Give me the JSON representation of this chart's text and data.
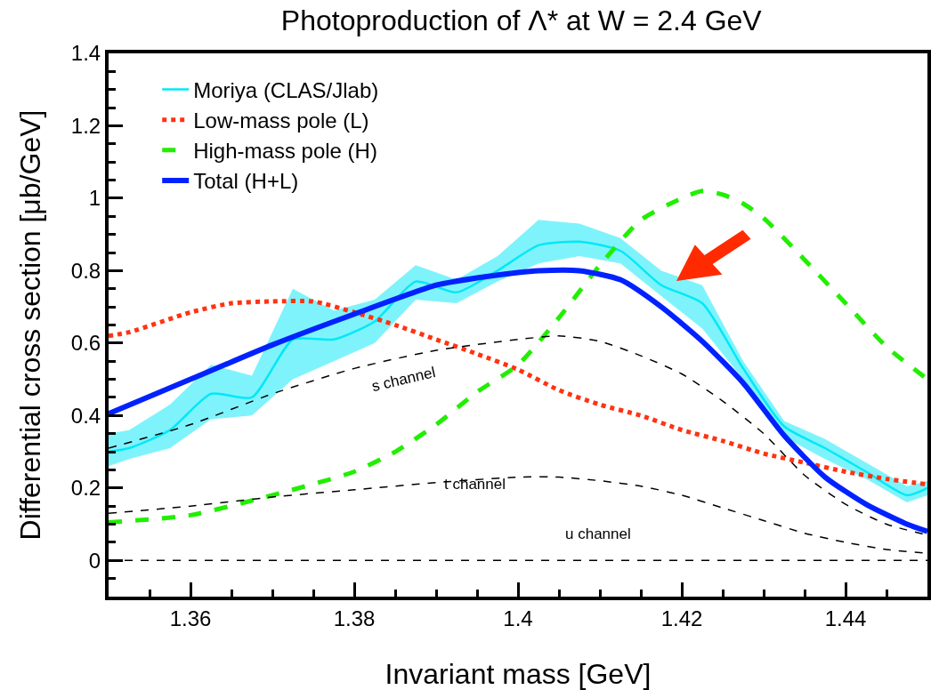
{
  "chart_data": {
    "type": "line",
    "title": "Photoproduction of Λ* at W = 2.4 GeV",
    "xlabel": "Invariant mass [GeV]",
    "ylabel": "Differential cross section [μb/GeV]",
    "xlim": [
      1.35,
      1.45
    ],
    "ylim": [
      -0.1,
      1.4
    ],
    "xticks": [
      {
        "value": 1.35,
        "label": null
      },
      {
        "value": 1.355,
        "label": null
      },
      1.36,
      {
        "value": 1.365,
        "label": null
      },
      {
        "value": 1.37,
        "label": null
      },
      {
        "value": 1.375,
        "label": null
      },
      1.38,
      {
        "value": 1.385,
        "label": null
      },
      {
        "value": 1.39,
        "label": null
      },
      {
        "value": 1.395,
        "label": null
      },
      {
        "value": 1.4,
        "label": "1.4"
      },
      {
        "value": 1.405,
        "label": null
      },
      {
        "value": 1.41,
        "label": null
      },
      {
        "value": 1.415,
        "label": null
      },
      1.42,
      {
        "value": 1.425,
        "label": null
      },
      {
        "value": 1.43,
        "label": null
      },
      {
        "value": 1.435,
        "label": null
      },
      1.44,
      {
        "value": 1.445,
        "label": null
      }
    ],
    "yticks": [
      {
        "value": -0.05,
        "label": null
      },
      0,
      {
        "value": 0.05,
        "label": null
      },
      {
        "value": 0.1,
        "label": null
      },
      {
        "value": 0.15,
        "label": null
      },
      0.2,
      {
        "value": 0.25,
        "label": null
      },
      {
        "value": 0.3,
        "label": null
      },
      {
        "value": 0.35,
        "label": null
      },
      0.4,
      {
        "value": 0.45,
        "label": null
      },
      {
        "value": 0.5,
        "label": null
      },
      {
        "value": 0.55,
        "label": null
      },
      0.6,
      {
        "value": 0.65,
        "label": null
      },
      {
        "value": 0.7,
        "label": null
      },
      {
        "value": 0.75,
        "label": null
      },
      0.8,
      {
        "value": 0.85,
        "label": null
      },
      {
        "value": 0.9,
        "label": null
      },
      {
        "value": 0.95,
        "label": null
      },
      {
        "value": 1,
        "label": "1"
      },
      {
        "value": 1.05,
        "label": null
      },
      {
        "value": 1.1,
        "label": null
      },
      {
        "value": 1.15,
        "label": null
      },
      1.2,
      {
        "value": 1.25,
        "label": null
      },
      {
        "value": 1.3,
        "label": null
      },
      {
        "value": 1.35,
        "label": null
      },
      1.4
    ],
    "grid": false,
    "legend": "top left",
    "marker": "none",
    "series": [
      {
        "name": "Moriya (CLAS/Jlab)",
        "color": "#00e8f8",
        "line_style": "solid",
        "x": [
          1.35,
          1.3525,
          1.3575,
          1.3625,
          1.3675,
          1.3725,
          1.3775,
          1.3825,
          1.3875,
          1.3925,
          1.3975,
          1.4025,
          1.4075,
          1.4125,
          1.4175,
          1.4225,
          1.4275,
          1.4325,
          1.4375,
          1.4425,
          1.4475,
          1.45
        ],
        "values": [
          0.3,
          0.31,
          0.36,
          0.46,
          0.45,
          0.61,
          0.61,
          0.66,
          0.77,
          0.74,
          0.8,
          0.87,
          0.88,
          0.855,
          0.76,
          0.71,
          0.53,
          0.37,
          0.31,
          0.245,
          0.18,
          0.2
        ],
        "lower": [
          0.26,
          0.28,
          0.31,
          0.39,
          0.4,
          0.5,
          0.55,
          0.6,
          0.72,
          0.71,
          0.77,
          0.82,
          0.84,
          0.82,
          0.73,
          0.64,
          0.5,
          0.34,
          0.28,
          0.225,
          0.16,
          0.18
        ],
        "upper": [
          0.35,
          0.36,
          0.43,
          0.54,
          0.51,
          0.75,
          0.69,
          0.72,
          0.815,
          0.775,
          0.84,
          0.94,
          0.93,
          0.89,
          0.8,
          0.76,
          0.55,
          0.385,
          0.335,
          0.27,
          0.205,
          0.22
        ]
      },
      {
        "name": "Low-mass pole (L)",
        "color": "#ff3311",
        "line_style": "dotted",
        "x": [
          1.35,
          1.3525,
          1.36,
          1.365,
          1.37,
          1.375,
          1.38,
          1.385,
          1.39,
          1.395,
          1.4,
          1.405,
          1.41,
          1.415,
          1.42,
          1.425,
          1.43,
          1.435,
          1.44,
          1.445,
          1.45
        ],
        "values": [
          0.62,
          0.63,
          0.685,
          0.71,
          0.715,
          0.715,
          0.685,
          0.65,
          0.61,
          0.57,
          0.527,
          0.47,
          0.43,
          0.4,
          0.36,
          0.33,
          0.295,
          0.27,
          0.245,
          0.225,
          0.21
        ]
      },
      {
        "name": "High-mass pole (H)",
        "color": "#22ee00",
        "line_style": "dashed",
        "x": [
          1.35,
          1.36,
          1.37,
          1.38,
          1.385,
          1.39,
          1.395,
          1.4,
          1.405,
          1.41,
          1.415,
          1.42,
          1.4225,
          1.425,
          1.4275,
          1.43,
          1.435,
          1.44,
          1.445,
          1.45
        ],
        "values": [
          0.105,
          0.125,
          0.18,
          0.245,
          0.3,
          0.375,
          0.465,
          0.54,
          0.67,
          0.815,
          0.94,
          1,
          1.02,
          1.01,
          0.985,
          0.945,
          0.83,
          0.71,
          0.59,
          0.5
        ]
      },
      {
        "name": "Total (H+L)",
        "color": "#0022ff",
        "line_style": "solid",
        "x": [
          1.35,
          1.36,
          1.37,
          1.38,
          1.39,
          1.395,
          1.4,
          1.4025,
          1.4075,
          1.4125,
          1.4175,
          1.4225,
          1.4275,
          1.4325,
          1.4375,
          1.4425,
          1.4475,
          1.45
        ],
        "values": [
          0.405,
          0.5,
          0.595,
          0.68,
          0.76,
          0.78,
          0.795,
          0.8,
          0.8,
          0.775,
          0.7,
          0.605,
          0.49,
          0.345,
          0.23,
          0.155,
          0.1,
          0.08
        ]
      },
      {
        "color": "#000000",
        "line_style": "dashed",
        "x": [
          1.35,
          1.36,
          1.37,
          1.38,
          1.39,
          1.4,
          1.405,
          1.41,
          1.415,
          1.42,
          1.425,
          1.43,
          1.435,
          1.44,
          1.445,
          1.45
        ],
        "values": [
          0.31,
          0.375,
          0.46,
          0.53,
          0.58,
          0.61,
          0.62,
          0.605,
          0.565,
          0.515,
          0.44,
          0.35,
          0.235,
          0.155,
          0.1,
          0.07
        ]
      },
      {
        "color": "#000000",
        "line_style": "dashed",
        "x": [
          1.35,
          1.36,
          1.37,
          1.38,
          1.39,
          1.4,
          1.405,
          1.41,
          1.415,
          1.42,
          1.425,
          1.43,
          1.435,
          1.44,
          1.445,
          1.45
        ],
        "values": [
          0.13,
          0.15,
          0.175,
          0.195,
          0.215,
          0.23,
          0.23,
          0.22,
          0.205,
          0.18,
          0.145,
          0.11,
          0.075,
          0.05,
          0.03,
          0.02
        ]
      },
      {
        "color": "#000000",
        "line_style": "dashed",
        "x": [
          1.35,
          1.45
        ],
        "values": [
          0,
          0
        ]
      }
    ],
    "annotations": [
      "s channel",
      "t channel",
      "u channel"
    ]
  }
}
